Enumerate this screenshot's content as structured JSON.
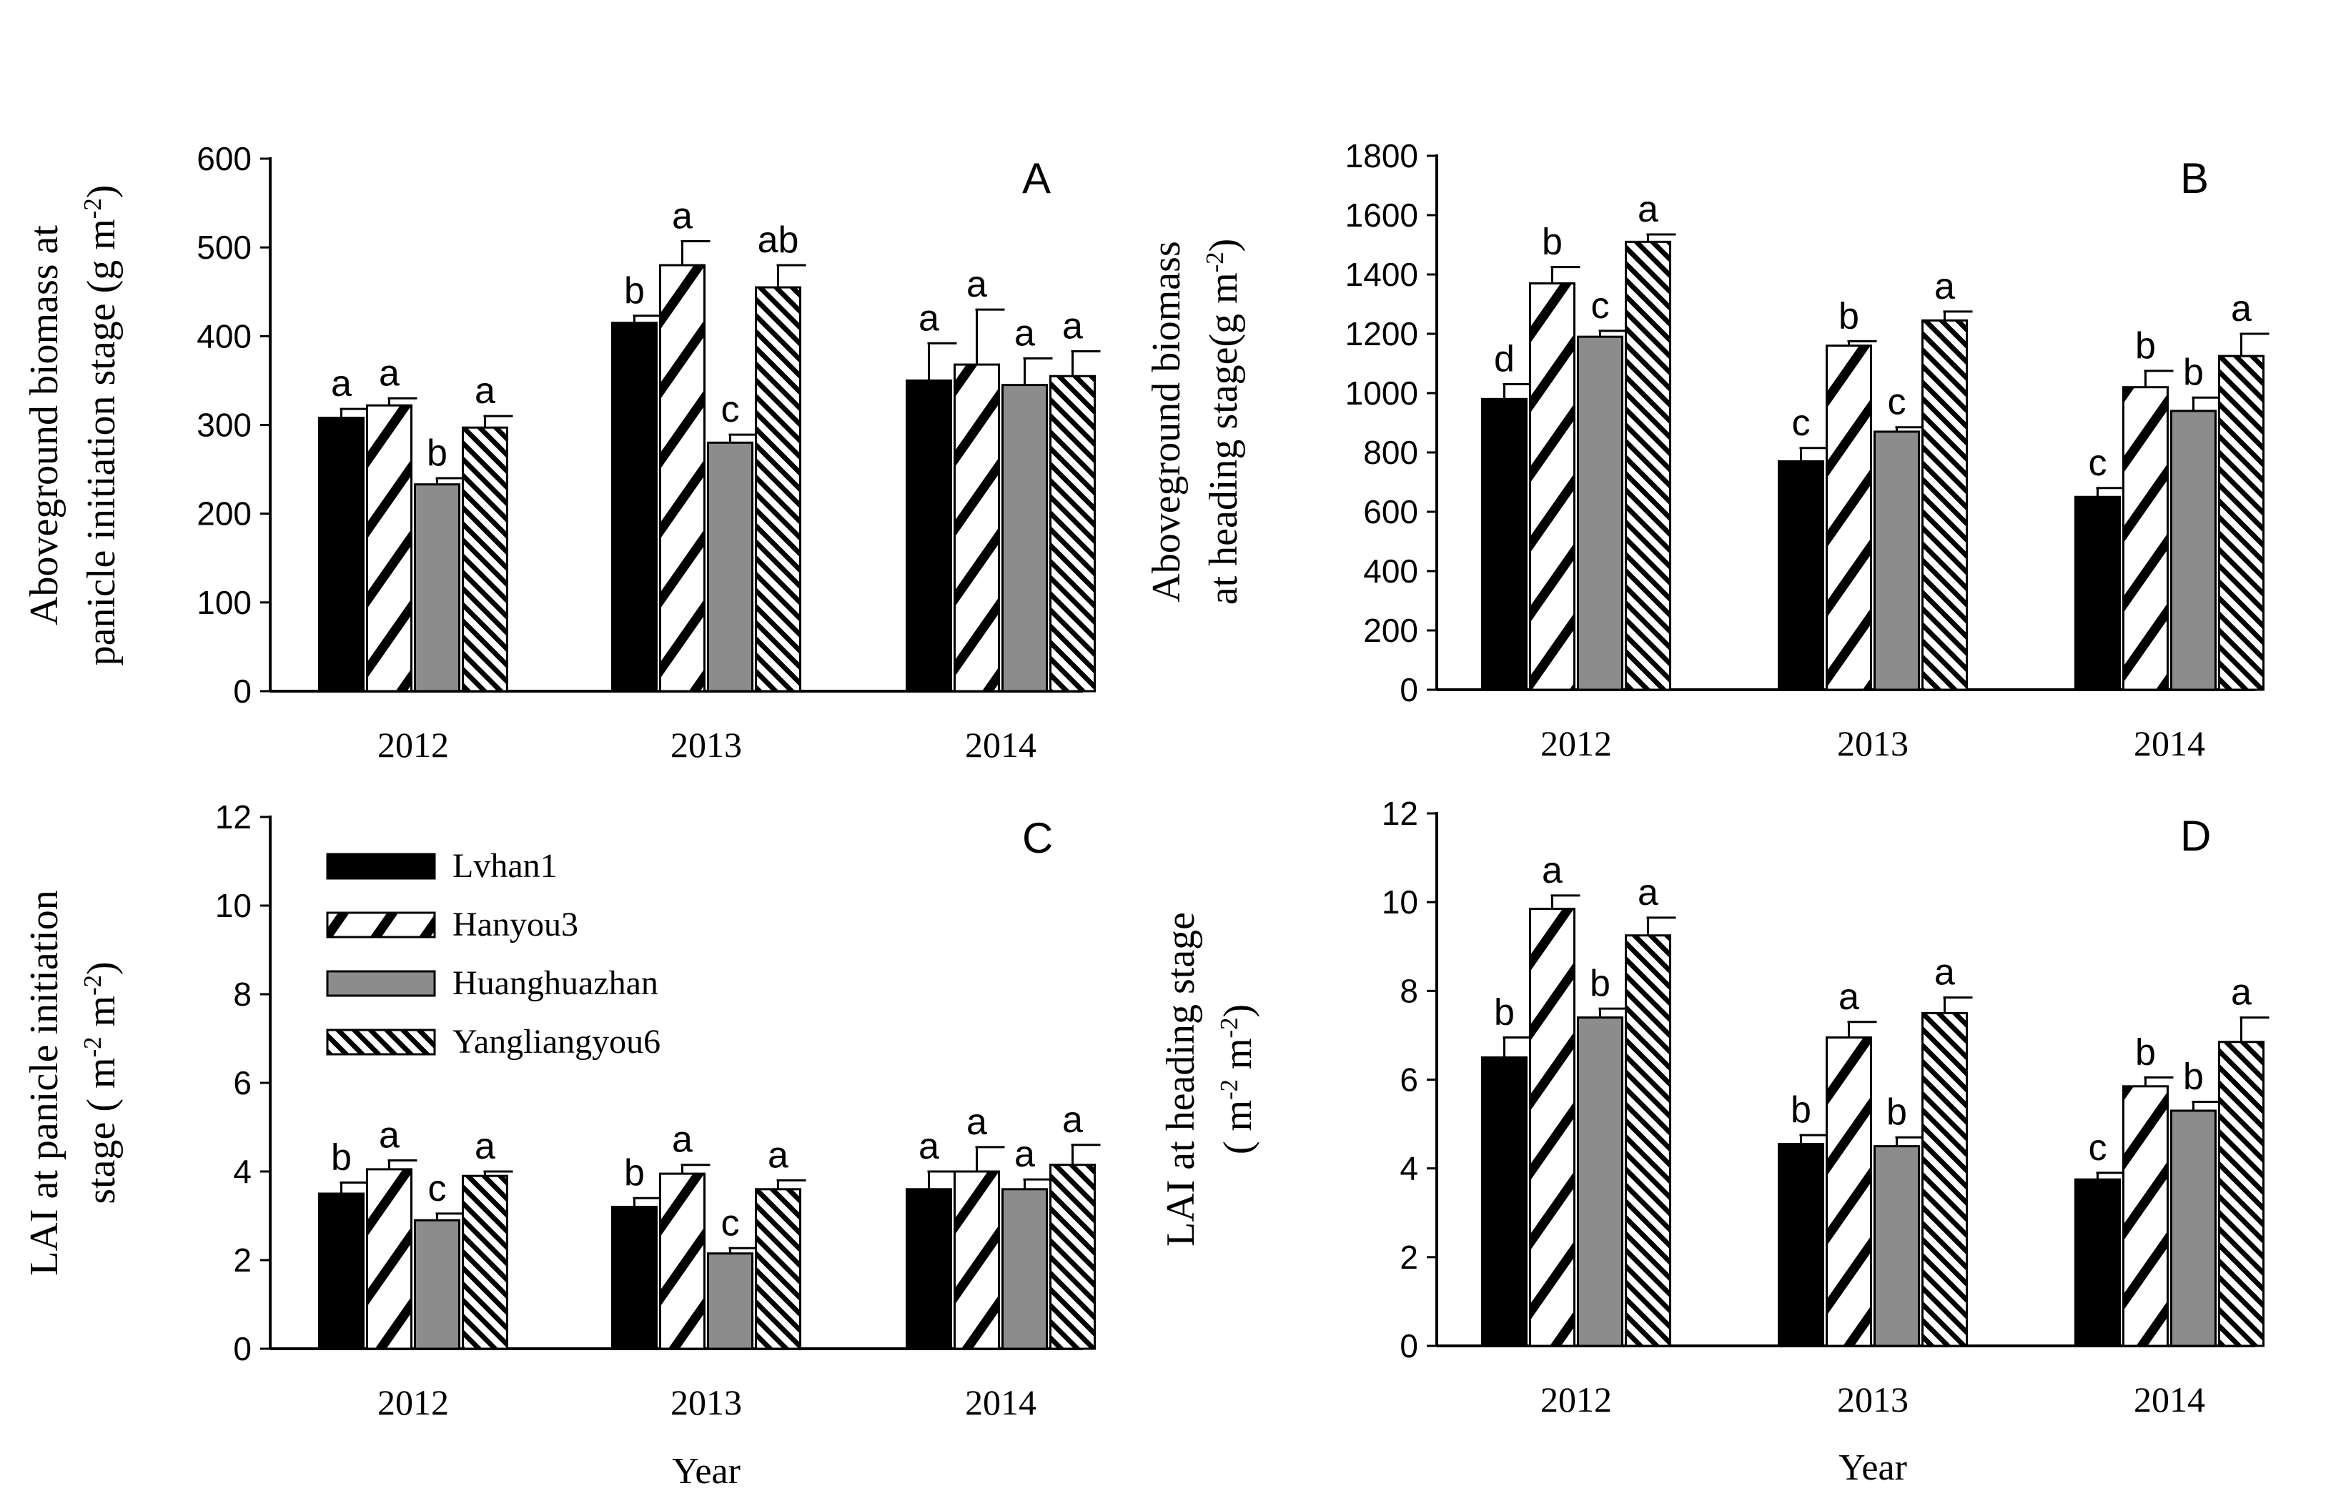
{
  "figure": {
    "shared_xlabel": "Year",
    "legend": [
      {
        "name": "Lvhan1",
        "pattern": "solid-black"
      },
      {
        "name": "Hanyou3",
        "pattern": "diag-wide"
      },
      {
        "name": "Huanghuazhan",
        "pattern": "solid-gray"
      },
      {
        "name": "Yangliangyou6",
        "pattern": "diag-dense"
      }
    ]
  },
  "chart_data": [
    {
      "id": "A",
      "type": "bar",
      "panel_label": "A",
      "categories": [
        "2012",
        "2013",
        "2014"
      ],
      "ylabel_lines": [
        "Aboveground biomass at",
        "panicle initiation stage (g m-2)"
      ],
      "ylim": [
        0,
        600
      ],
      "yticks": [
        "0",
        "100",
        "200",
        "300",
        "400",
        "500",
        "600"
      ],
      "series": [
        {
          "name": "Lvhan1",
          "values": [
            308,
            415,
            350
          ],
          "errors": [
            10,
            8,
            42
          ],
          "letters": [
            "a",
            "b",
            "a"
          ]
        },
        {
          "name": "Hanyou3",
          "values": [
            322,
            480,
            368
          ],
          "errors": [
            8,
            27,
            62
          ],
          "letters": [
            "a",
            "a",
            "a"
          ]
        },
        {
          "name": "Huanghuazhan",
          "values": [
            233,
            280,
            345
          ],
          "errors": [
            7,
            9,
            30
          ],
          "letters": [
            "b",
            "c",
            "a"
          ]
        },
        {
          "name": "Yangliangyou6",
          "values": [
            297,
            455,
            355
          ],
          "errors": [
            13,
            25,
            28
          ],
          "letters": [
            "a",
            "ab",
            "a"
          ]
        }
      ]
    },
    {
      "id": "B",
      "type": "bar",
      "panel_label": "B",
      "categories": [
        "2012",
        "2013",
        "2014"
      ],
      "ylabel_lines": [
        "Aboveground biomass",
        "at heading stage(g m-2)"
      ],
      "ylim": [
        0,
        1800
      ],
      "yticks": [
        "0",
        "200",
        "400",
        "600",
        "800",
        "1000",
        "1200",
        "1400",
        "1600",
        "1800"
      ],
      "series": [
        {
          "name": "Lvhan1",
          "values": [
            980,
            770,
            650
          ],
          "errors": [
            50,
            45,
            30
          ],
          "letters": [
            "d",
            "c",
            "c"
          ]
        },
        {
          "name": "Hanyou3",
          "values": [
            1370,
            1160,
            1020
          ],
          "errors": [
            55,
            15,
            55
          ],
          "letters": [
            "b",
            "b",
            "b"
          ]
        },
        {
          "name": "Huanghuazhan",
          "values": [
            1190,
            870,
            940
          ],
          "errors": [
            20,
            15,
            45
          ],
          "letters": [
            "c",
            "c",
            "b"
          ]
        },
        {
          "name": "Yangliangyou6",
          "values": [
            1510,
            1245,
            1125
          ],
          "errors": [
            25,
            30,
            75
          ],
          "letters": [
            "a",
            "a",
            "a"
          ]
        }
      ]
    },
    {
      "id": "C",
      "type": "bar",
      "panel_label": "C",
      "categories": [
        "2012",
        "2013",
        "2014"
      ],
      "ylabel_lines": [
        "LAI  at panicle initiation",
        "stage ( m-2 m-2)"
      ],
      "ylim": [
        0,
        12
      ],
      "yticks": [
        "0",
        "2",
        "4",
        "6",
        "8",
        "10",
        "12"
      ],
      "series": [
        {
          "name": "Lvhan1",
          "values": [
            3.5,
            3.2,
            3.6
          ],
          "errors": [
            0.25,
            0.2,
            0.4
          ],
          "letters": [
            "b",
            "b",
            "a"
          ]
        },
        {
          "name": "Hanyou3",
          "values": [
            4.05,
            3.95,
            4.0
          ],
          "errors": [
            0.2,
            0.2,
            0.55
          ],
          "letters": [
            "a",
            "a",
            "a"
          ]
        },
        {
          "name": "Huanghuazhan",
          "values": [
            2.9,
            2.15,
            3.6
          ],
          "errors": [
            0.15,
            0.12,
            0.22
          ],
          "letters": [
            "c",
            "c",
            "a"
          ]
        },
        {
          "name": "Yangliangyou6",
          "values": [
            3.9,
            3.6,
            4.15
          ],
          "errors": [
            0.1,
            0.2,
            0.45
          ],
          "letters": [
            "a",
            "a",
            "a"
          ]
        }
      ]
    },
    {
      "id": "D",
      "type": "bar",
      "panel_label": "D",
      "categories": [
        "2012",
        "2013",
        "2014"
      ],
      "ylabel_lines": [
        "LAI  at heading stage",
        "( m-2 m-2)"
      ],
      "ylim": [
        0,
        12
      ],
      "yticks": [
        "0",
        "2",
        "4",
        "6",
        "8",
        "10",
        "12"
      ],
      "series": [
        {
          "name": "Lvhan1",
          "values": [
            6.5,
            4.55,
            3.75
          ],
          "errors": [
            0.45,
            0.2,
            0.15
          ],
          "letters": [
            "b",
            "b",
            "c"
          ]
        },
        {
          "name": "Hanyou3",
          "values": [
            9.85,
            6.95,
            5.85
          ],
          "errors": [
            0.3,
            0.35,
            0.2
          ],
          "letters": [
            "a",
            "a",
            "b"
          ]
        },
        {
          "name": "Huanghuazhan",
          "values": [
            7.4,
            4.5,
            5.3
          ],
          "errors": [
            0.2,
            0.2,
            0.2
          ],
          "letters": [
            "b",
            "b",
            "b"
          ]
        },
        {
          "name": "Yangliangyou6",
          "values": [
            9.25,
            7.5,
            6.85
          ],
          "errors": [
            0.4,
            0.35,
            0.55
          ],
          "letters": [
            "a",
            "a",
            "a"
          ]
        }
      ]
    }
  ]
}
